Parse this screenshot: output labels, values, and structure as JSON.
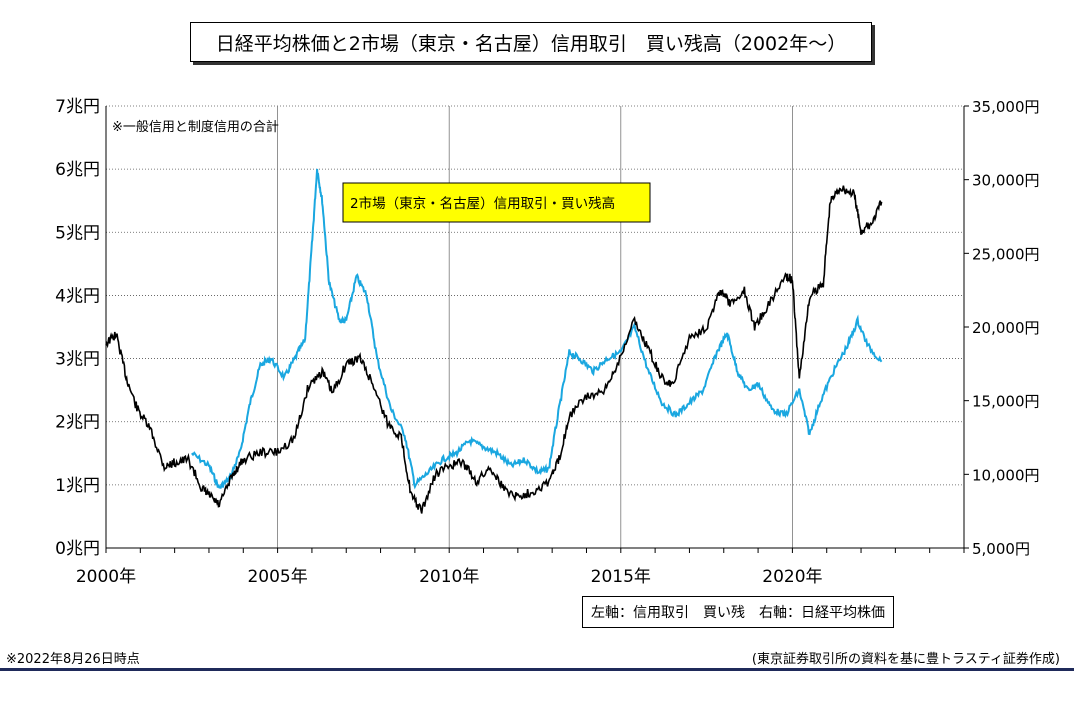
{
  "title": "日経平均株価と2市場（東京・名古屋）信用取引　買い残高（2002年～）",
  "note": "※一般信用と制度信用の合計",
  "footnote_left": "※2022年8月26日時点",
  "footnote_right": "(東京証券取引所の資料を基に豊トラスティ証券作成)",
  "legend_text": "左軸：信用取引　買い残　右軸：日経平均株価",
  "chart_data": {
    "type": "line",
    "series_label_box": "2市場（東京・名古屋）信用取引・買い残高",
    "x_ticks": [
      "2000年",
      "2005年",
      "2010年",
      "2015年",
      "2020年"
    ],
    "x_tick_values": [
      2000,
      2005,
      2010,
      2015,
      2020
    ],
    "xlim": [
      2000,
      2025
    ],
    "left_axis": {
      "ticks": [
        "0兆円",
        "1兆円",
        "2兆円",
        "3兆円",
        "4兆円",
        "5兆円",
        "6兆円",
        "7兆円"
      ],
      "ylim": [
        0,
        7
      ],
      "unit": "兆円"
    },
    "right_axis": {
      "ticks": [
        "5,000円",
        "10,000円",
        "15,000円",
        "20,000円",
        "25,000円",
        "30,000円",
        "35,000円"
      ],
      "ylim": [
        5000,
        35000
      ],
      "unit": "円"
    },
    "colors": {
      "margin": "#1aa7e0",
      "nikkei": "#000000",
      "label_box": "#ffff00"
    },
    "series": [
      {
        "axis": "left",
        "x": [
          2002.5,
          2003.0,
          2003.3,
          2003.6,
          2003.9,
          2004.2,
          2004.5,
          2004.8,
          2005.2,
          2005.5,
          2005.8,
          2006.0,
          2006.15,
          2006.3,
          2006.5,
          2006.8,
          2007.0,
          2007.3,
          2007.6,
          2007.9,
          2008.3,
          2008.7,
          2009.0,
          2009.4,
          2009.8,
          2010.2,
          2010.6,
          2011.0,
          2011.4,
          2011.8,
          2012.2,
          2012.6,
          2012.9,
          2013.2,
          2013.5,
          2013.8,
          2014.2,
          2014.6,
          2015.0,
          2015.4,
          2015.8,
          2016.2,
          2016.6,
          2017.0,
          2017.4,
          2017.8,
          2018.1,
          2018.4,
          2018.7,
          2019.0,
          2019.4,
          2019.8,
          2020.2,
          2020.5,
          2020.8,
          2021.2,
          2021.6,
          2021.9,
          2022.2,
          2022.6
        ],
        "y": [
          1.5,
          1.3,
          0.95,
          1.1,
          1.5,
          2.3,
          2.9,
          3.0,
          2.7,
          3.0,
          3.3,
          4.8,
          6.0,
          5.5,
          4.2,
          3.6,
          3.6,
          4.3,
          4.0,
          3.0,
          2.2,
          1.8,
          1.0,
          1.2,
          1.4,
          1.5,
          1.7,
          1.6,
          1.5,
          1.3,
          1.4,
          1.2,
          1.25,
          2.2,
          3.1,
          3.0,
          2.8,
          3.0,
          3.1,
          3.5,
          2.8,
          2.3,
          2.1,
          2.3,
          2.5,
          3.1,
          3.4,
          2.8,
          2.5,
          2.6,
          2.2,
          2.1,
          2.5,
          1.8,
          2.3,
          2.8,
          3.2,
          3.6,
          3.2,
          2.95
        ]
      },
      {
        "axis": "right",
        "x": [
          2000.0,
          2000.3,
          2000.6,
          2000.9,
          2001.3,
          2001.7,
          2002.0,
          2002.4,
          2002.8,
          2003.0,
          2003.3,
          2003.7,
          2004.0,
          2004.5,
          2005.0,
          2005.5,
          2005.9,
          2006.3,
          2006.6,
          2007.0,
          2007.4,
          2007.8,
          2008.2,
          2008.6,
          2008.9,
          2009.2,
          2009.6,
          2010.0,
          2010.4,
          2010.8,
          2011.2,
          2011.6,
          2012.0,
          2012.4,
          2012.9,
          2013.2,
          2013.5,
          2014.0,
          2014.5,
          2014.9,
          2015.4,
          2015.8,
          2016.2,
          2016.5,
          2017.0,
          2017.5,
          2017.9,
          2018.2,
          2018.6,
          2018.9,
          2019.3,
          2019.8,
          2020.0,
          2020.2,
          2020.5,
          2020.9,
          2021.1,
          2021.4,
          2021.8,
          2022.0,
          2022.3,
          2022.6
        ],
        "y": [
          18900,
          19500,
          16500,
          14500,
          13000,
          10500,
          10800,
          11000,
          9000,
          8600,
          7900,
          10000,
          11000,
          11500,
          11500,
          12500,
          16000,
          17000,
          15500,
          17500,
          17900,
          16000,
          13500,
          12500,
          8500,
          7500,
          10000,
          10600,
          10800,
          9500,
          10500,
          9000,
          8500,
          8800,
          9500,
          11000,
          14000,
          15300,
          15500,
          17500,
          20500,
          18500,
          16500,
          16000,
          19300,
          20000,
          22500,
          21500,
          22500,
          20000,
          21500,
          23500,
          23200,
          16500,
          22000,
          23000,
          28500,
          29500,
          29000,
          26500,
          27000,
          28500
        ]
      }
    ]
  }
}
